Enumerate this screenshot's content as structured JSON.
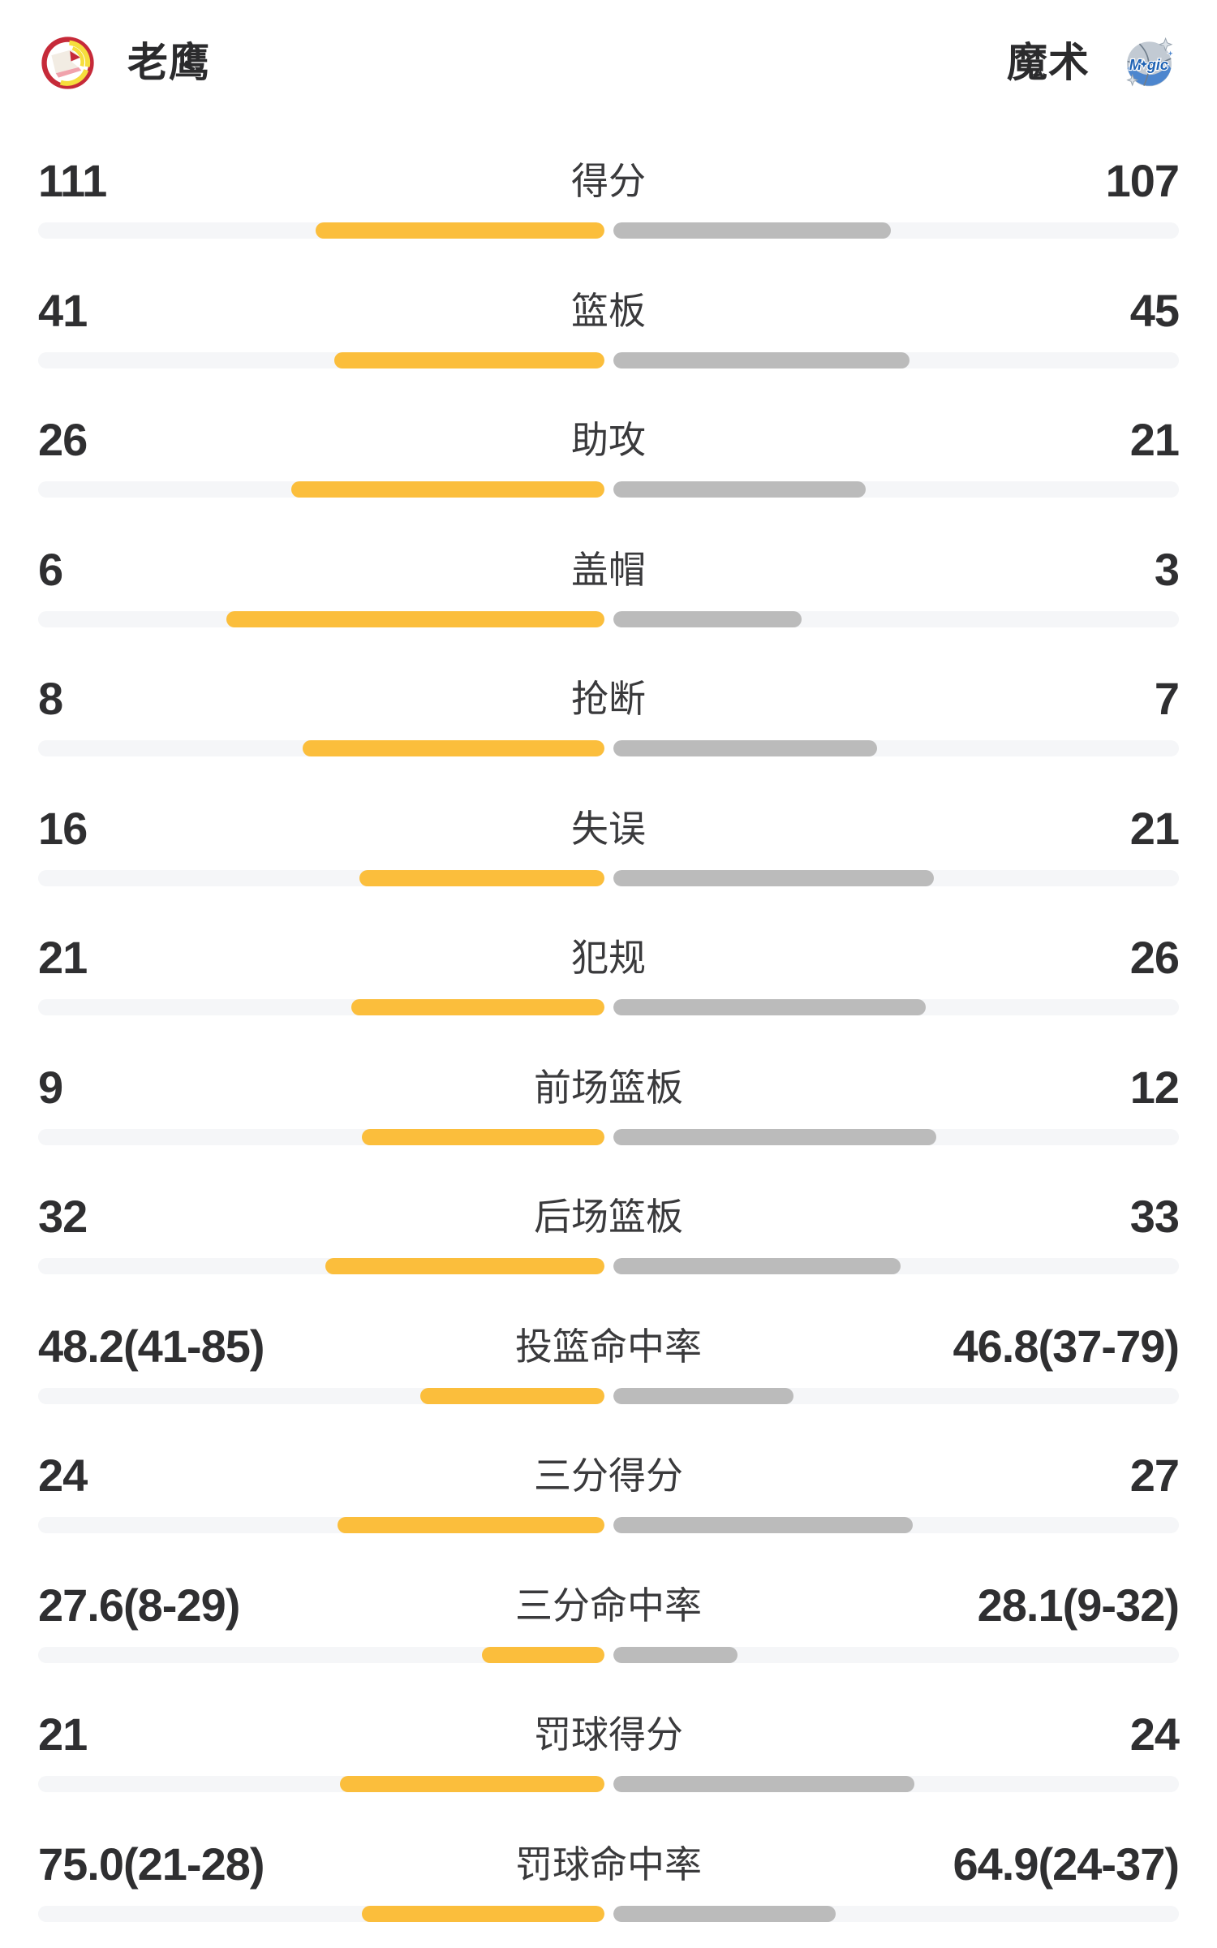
{
  "teams": {
    "left": {
      "name": "老鹰",
      "logo_icon": "hawks-logo"
    },
    "right": {
      "name": "魔术",
      "logo_icon": "magic-logo"
    }
  },
  "colors": {
    "left_bar": "#FBBE3C",
    "right_bar": "#BBBBBB",
    "track": "#F5F6F8",
    "value_text": "#2F2F31",
    "label_text": "#3A3A3C"
  },
  "chart_data": {
    "type": "bar",
    "orientation": "mirrored-comparison",
    "legend": [
      "老鹰",
      "魔术"
    ],
    "legend_position": "top",
    "grid": false,
    "bar_rule": "count rows: fill = value/(left+right); percent rows: fill = value/(value+100)",
    "rows": [
      {
        "label": "得分",
        "left": "111",
        "right": "107",
        "left_value": 111,
        "right_value": 107,
        "percent": false
      },
      {
        "label": "篮板",
        "left": "41",
        "right": "45",
        "left_value": 41,
        "right_value": 45,
        "percent": false
      },
      {
        "label": "助攻",
        "left": "26",
        "right": "21",
        "left_value": 26,
        "right_value": 21,
        "percent": false
      },
      {
        "label": "盖帽",
        "left": "6",
        "right": "3",
        "left_value": 6,
        "right_value": 3,
        "percent": false
      },
      {
        "label": "抢断",
        "left": "8",
        "right": "7",
        "left_value": 8,
        "right_value": 7,
        "percent": false
      },
      {
        "label": "失误",
        "left": "16",
        "right": "21",
        "left_value": 16,
        "right_value": 21,
        "percent": false
      },
      {
        "label": "犯规",
        "left": "21",
        "right": "26",
        "left_value": 21,
        "right_value": 26,
        "percent": false
      },
      {
        "label": "前场篮板",
        "left": "9",
        "right": "12",
        "left_value": 9,
        "right_value": 12,
        "percent": false
      },
      {
        "label": "后场篮板",
        "left": "32",
        "right": "33",
        "left_value": 32,
        "right_value": 33,
        "percent": false
      },
      {
        "label": "投篮命中率",
        "left": "48.2(41-85)",
        "right": "46.8(37-79)",
        "left_value": 48.2,
        "right_value": 46.8,
        "percent": true
      },
      {
        "label": "三分得分",
        "left": "24",
        "right": "27",
        "left_value": 24,
        "right_value": 27,
        "percent": false
      },
      {
        "label": "三分命中率",
        "left": "27.6(8-29)",
        "right": "28.1(9-32)",
        "left_value": 27.6,
        "right_value": 28.1,
        "percent": true
      },
      {
        "label": "罚球得分",
        "left": "21",
        "right": "24",
        "left_value": 21,
        "right_value": 24,
        "percent": false
      },
      {
        "label": "罚球命中率",
        "left": "75.0(21-28)",
        "right": "64.9(24-37)",
        "left_value": 75.0,
        "right_value": 64.9,
        "percent": true
      }
    ]
  }
}
